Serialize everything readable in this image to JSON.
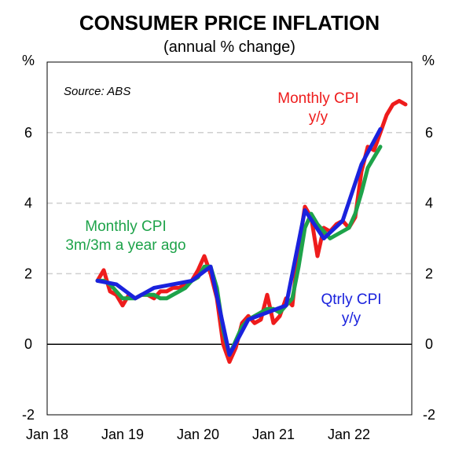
{
  "chart_data": {
    "type": "line",
    "title": "CONSUMER PRICE INFLATION",
    "subtitle": "(annual % change)",
    "ylabel_left": "%",
    "ylabel_right": "%",
    "source": "Source: ABS",
    "ylim": [
      -2,
      8
    ],
    "yticks": [
      -2,
      0,
      2,
      4,
      6
    ],
    "x_range": [
      "2018-01",
      "2022-11"
    ],
    "x_ticks": [
      {
        "label": "Jan 18",
        "x": "2018-01"
      },
      {
        "label": "Jan 19",
        "x": "2019-01"
      },
      {
        "label": "Jan 20",
        "x": "2020-01"
      },
      {
        "label": "Jan 21",
        "x": "2021-01"
      },
      {
        "label": "Jan 22",
        "x": "2022-01"
      }
    ],
    "grid": {
      "horizontal": true,
      "style": "dashed"
    },
    "zero_line": true,
    "series": [
      {
        "name": "Monthly CPI y/y",
        "label_lines": [
          "Monthly CPI",
          "y/y"
        ],
        "color": "#ee1c1c",
        "points": [
          [
            "2018-09",
            1.8
          ],
          [
            "2018-10",
            2.1
          ],
          [
            "2018-11",
            1.5
          ],
          [
            "2018-12",
            1.4
          ],
          [
            "2019-01",
            1.1
          ],
          [
            "2019-02",
            1.4
          ],
          [
            "2019-03",
            1.3
          ],
          [
            "2019-04",
            1.4
          ],
          [
            "2019-05",
            1.4
          ],
          [
            "2019-06",
            1.3
          ],
          [
            "2019-07",
            1.5
          ],
          [
            "2019-08",
            1.5
          ],
          [
            "2019-09",
            1.6
          ],
          [
            "2019-10",
            1.6
          ],
          [
            "2019-11",
            1.7
          ],
          [
            "2019-12",
            1.8
          ],
          [
            "2020-01",
            2.1
          ],
          [
            "2020-02",
            2.5
          ],
          [
            "2020-03",
            2.0
          ],
          [
            "2020-04",
            1.3
          ],
          [
            "2020-05",
            0.0
          ],
          [
            "2020-06",
            -0.5
          ],
          [
            "2020-07",
            -0.1
          ],
          [
            "2020-08",
            0.6
          ],
          [
            "2020-09",
            0.8
          ],
          [
            "2020-10",
            0.6
          ],
          [
            "2020-11",
            0.7
          ],
          [
            "2020-12",
            1.4
          ],
          [
            "2021-01",
            0.6
          ],
          [
            "2021-02",
            0.8
          ],
          [
            "2021-03",
            1.3
          ],
          [
            "2021-04",
            1.1
          ],
          [
            "2021-05",
            2.7
          ],
          [
            "2021-06",
            3.9
          ],
          [
            "2021-07",
            3.6
          ],
          [
            "2021-08",
            2.5
          ],
          [
            "2021-09",
            3.3
          ],
          [
            "2021-10",
            3.2
          ],
          [
            "2021-11",
            3.4
          ],
          [
            "2021-12",
            3.5
          ],
          [
            "2022-01",
            3.3
          ],
          [
            "2022-02",
            3.6
          ],
          [
            "2022-03",
            4.9
          ],
          [
            "2022-04",
            5.6
          ],
          [
            "2022-05",
            5.5
          ],
          [
            "2022-06",
            6.0
          ],
          [
            "2022-07",
            6.5
          ],
          [
            "2022-08",
            6.8
          ],
          [
            "2022-09",
            6.9
          ],
          [
            "2022-10",
            6.8
          ]
        ]
      },
      {
        "name": "Monthly CPI 3m/3m a year ago",
        "label_lines": [
          "Monthly CPI",
          "3m/3m a year ago"
        ],
        "color": "#1ea34a",
        "points": [
          [
            "2018-09",
            1.8
          ],
          [
            "2018-10",
            1.8
          ],
          [
            "2018-11",
            1.7
          ],
          [
            "2018-12",
            1.5
          ],
          [
            "2019-01",
            1.3
          ],
          [
            "2019-02",
            1.3
          ],
          [
            "2019-03",
            1.3
          ],
          [
            "2019-04",
            1.4
          ],
          [
            "2019-05",
            1.4
          ],
          [
            "2019-06",
            1.4
          ],
          [
            "2019-07",
            1.3
          ],
          [
            "2019-08",
            1.3
          ],
          [
            "2019-09",
            1.4
          ],
          [
            "2019-10",
            1.5
          ],
          [
            "2019-11",
            1.6
          ],
          [
            "2019-12",
            1.8
          ],
          [
            "2020-01",
            1.9
          ],
          [
            "2020-02",
            2.2
          ],
          [
            "2020-03",
            2.2
          ],
          [
            "2020-04",
            1.6
          ],
          [
            "2020-05",
            0.4
          ],
          [
            "2020-06",
            -0.3
          ],
          [
            "2020-07",
            0.1
          ],
          [
            "2020-08",
            0.5
          ],
          [
            "2020-09",
            0.7
          ],
          [
            "2020-10",
            0.8
          ],
          [
            "2020-11",
            0.9
          ],
          [
            "2020-12",
            1.0
          ],
          [
            "2021-01",
            1.0
          ],
          [
            "2021-02",
            0.9
          ],
          [
            "2021-03",
            1.1
          ],
          [
            "2021-04",
            1.3
          ],
          [
            "2021-05",
            2.2
          ],
          [
            "2021-06",
            3.3
          ],
          [
            "2021-07",
            3.7
          ],
          [
            "2021-08",
            3.4
          ],
          [
            "2021-09",
            3.2
          ],
          [
            "2021-10",
            3.0
          ],
          [
            "2021-11",
            3.1
          ],
          [
            "2021-12",
            3.2
          ],
          [
            "2022-01",
            3.3
          ],
          [
            "2022-02",
            3.7
          ],
          [
            "2022-03",
            4.3
          ],
          [
            "2022-04",
            5.0
          ],
          [
            "2022-05",
            5.3
          ],
          [
            "2022-06",
            5.6
          ]
        ]
      },
      {
        "name": "Qtrly CPI y/y",
        "label_lines": [
          "Qtrly CPI",
          "y/y"
        ],
        "color": "#1a22dd",
        "points": [
          [
            "2018-09",
            1.8
          ],
          [
            "2018-12",
            1.7
          ],
          [
            "2019-03",
            1.3
          ],
          [
            "2019-06",
            1.6
          ],
          [
            "2019-09",
            1.7
          ],
          [
            "2019-12",
            1.8
          ],
          [
            "2020-03",
            2.2
          ],
          [
            "2020-06",
            -0.3
          ],
          [
            "2020-09",
            0.7
          ],
          [
            "2020-12",
            0.9
          ],
          [
            "2021-03",
            1.1
          ],
          [
            "2021-06",
            3.8
          ],
          [
            "2021-09",
            3.0
          ],
          [
            "2021-12",
            3.5
          ],
          [
            "2022-03",
            5.1
          ],
          [
            "2022-06",
            6.1
          ]
        ]
      }
    ]
  }
}
